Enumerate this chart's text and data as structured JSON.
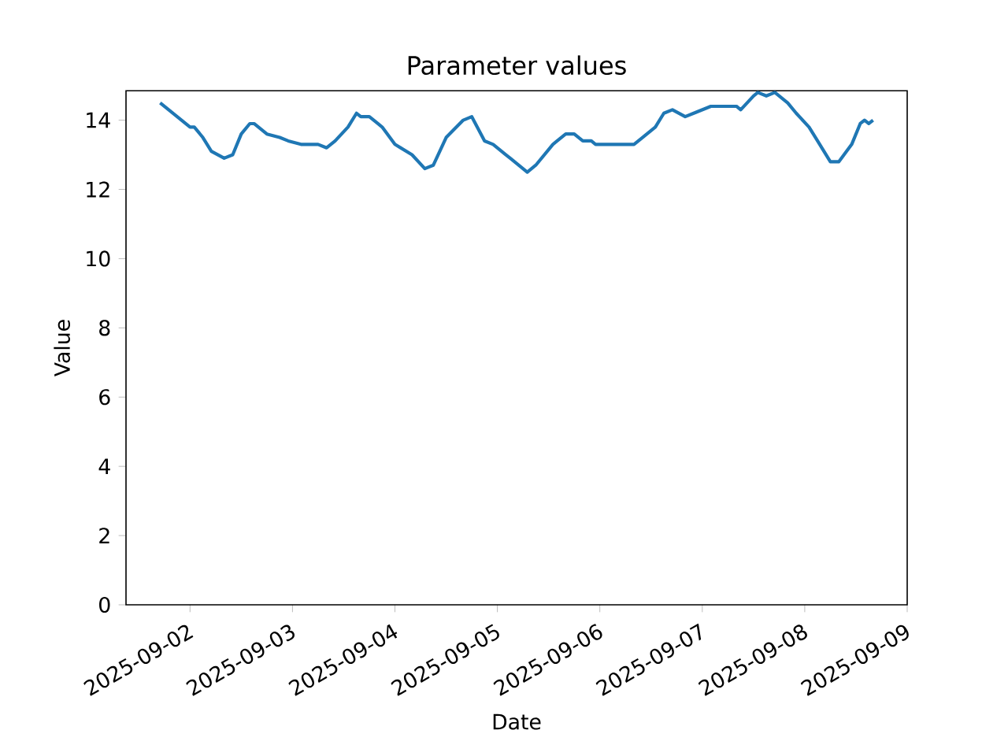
{
  "chart_data": {
    "type": "line",
    "title": "Parameter values",
    "xlabel": "Date",
    "ylabel": "Value",
    "x": [
      "2025-09-01T17:00",
      "2025-09-02T00:00",
      "2025-09-02T01:00",
      "2025-09-02T03:00",
      "2025-09-02T05:00",
      "2025-09-02T08:00",
      "2025-09-02T10:00",
      "2025-09-02T12:00",
      "2025-09-02T14:00",
      "2025-09-02T15:00",
      "2025-09-02T18:00",
      "2025-09-02T21:00",
      "2025-09-02T23:00",
      "2025-09-03T02:00",
      "2025-09-03T06:00",
      "2025-09-03T08:00",
      "2025-09-03T10:00",
      "2025-09-03T13:00",
      "2025-09-03T15:00",
      "2025-09-03T16:00",
      "2025-09-03T18:00",
      "2025-09-03T20:00",
      "2025-09-03T21:00",
      "2025-09-04T00:00",
      "2025-09-04T04:00",
      "2025-09-04T07:00",
      "2025-09-04T09:00",
      "2025-09-04T12:00",
      "2025-09-04T16:00",
      "2025-09-04T18:00",
      "2025-09-04T21:00",
      "2025-09-04T23:00",
      "2025-09-05T02:00",
      "2025-09-05T03:00",
      "2025-09-05T07:00",
      "2025-09-05T09:00",
      "2025-09-05T13:00",
      "2025-09-05T14:00",
      "2025-09-05T16:00",
      "2025-09-05T18:00",
      "2025-09-05T20:00",
      "2025-09-05T22:00",
      "2025-09-05T23:00",
      "2025-09-06T08:00",
      "2025-09-06T10:00",
      "2025-09-06T13:00",
      "2025-09-06T15:00",
      "2025-09-06T17:00",
      "2025-09-06T20:00",
      "2025-09-06T22:00",
      "2025-09-07T02:00",
      "2025-09-07T08:00",
      "2025-09-07T09:00",
      "2025-09-07T12:00",
      "2025-09-07T13:00",
      "2025-09-07T15:00",
      "2025-09-07T17:00",
      "2025-09-07T20:00",
      "2025-09-07T22:00",
      "2025-09-08T01:00",
      "2025-09-08T03:00",
      "2025-09-08T06:00",
      "2025-09-08T08:00",
      "2025-09-08T11:00",
      "2025-09-08T13:00",
      "2025-09-08T14:00",
      "2025-09-08T15:00",
      "2025-09-08T16:00"
    ],
    "series": [
      {
        "color": "#1f77b4",
        "values": [
          14.5,
          13.8,
          13.8,
          13.5,
          13.1,
          12.9,
          13.0,
          13.6,
          13.9,
          13.9,
          13.6,
          13.5,
          13.4,
          13.3,
          13.3,
          13.2,
          13.4,
          13.8,
          14.2,
          14.1,
          14.1,
          13.9,
          13.8,
          13.3,
          13.0,
          12.6,
          12.7,
          13.5,
          14.0,
          14.1,
          13.4,
          13.3,
          13.0,
          12.9,
          12.5,
          12.7,
          13.3,
          13.4,
          13.6,
          13.6,
          13.4,
          13.4,
          13.3,
          13.3,
          13.5,
          13.8,
          14.2,
          14.3,
          14.1,
          14.2,
          14.4,
          14.4,
          14.3,
          14.7,
          14.8,
          14.7,
          14.8,
          14.5,
          14.2,
          13.8,
          13.4,
          12.8,
          12.8,
          13.3,
          13.9,
          14.0,
          13.9,
          14.0
        ]
      }
    ],
    "xlim": [
      "2025-09-01T09:00",
      "2025-09-09T00:00"
    ],
    "xticks": [
      "2025-09-02",
      "2025-09-03",
      "2025-09-04",
      "2025-09-05",
      "2025-09-06",
      "2025-09-07",
      "2025-09-08",
      "2025-09-09"
    ],
    "ylim": [
      0,
      14.85
    ],
    "yticks": [
      0,
      2,
      4,
      6,
      8,
      10,
      12,
      14
    ]
  }
}
